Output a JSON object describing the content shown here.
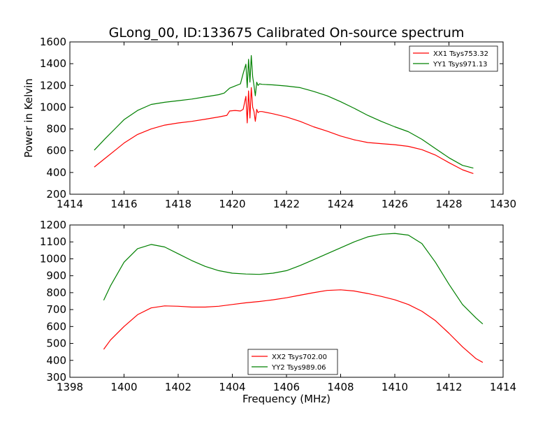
{
  "figure": {
    "title": "GLong_00, ID:133675 Calibrated On-source spectrum"
  },
  "chart_data": [
    {
      "type": "line",
      "title": "GLong_00, ID:133675 Calibrated On-source spectrum",
      "xlabel": "",
      "ylabel": "Power in Kelvin",
      "xlim": [
        1414,
        1430
      ],
      "ylim": [
        200,
        1600
      ],
      "xticks": [
        1414,
        1416,
        1418,
        1420,
        1422,
        1424,
        1426,
        1428,
        1430
      ],
      "yticks": [
        200,
        400,
        600,
        800,
        1000,
        1200,
        1400,
        1600
      ],
      "grid": false,
      "legend_position": "top-right",
      "series": [
        {
          "name": "XX1 Tsys753.32",
          "color": "#ff0000",
          "x": [
            1414.9,
            1415.3,
            1415.7,
            1416.0,
            1416.5,
            1417.0,
            1417.5,
            1418.0,
            1418.5,
            1419.0,
            1419.5,
            1419.8,
            1419.9,
            1420.1,
            1420.3,
            1420.4,
            1420.5,
            1420.55,
            1420.6,
            1420.65,
            1420.7,
            1420.75,
            1420.8,
            1420.85,
            1420.9,
            1420.95,
            1421.0,
            1421.1,
            1421.5,
            1422.0,
            1422.5,
            1423.0,
            1423.5,
            1424.0,
            1424.5,
            1425.0,
            1425.5,
            1426.0,
            1426.5,
            1427.0,
            1427.5,
            1428.0,
            1428.5,
            1428.9
          ],
          "y": [
            450,
            530,
            610,
            670,
            750,
            800,
            835,
            855,
            870,
            890,
            910,
            925,
            965,
            970,
            965,
            980,
            1100,
            855,
            1150,
            900,
            1180,
            1000,
            960,
            870,
            980,
            950,
            960,
            960,
            940,
            910,
            870,
            820,
            780,
            735,
            700,
            675,
            665,
            655,
            640,
            610,
            560,
            490,
            425,
            390
          ]
        },
        {
          "name": "YY1 Tsys971.13",
          "color": "#008000",
          "x": [
            1414.9,
            1415.3,
            1415.7,
            1416.0,
            1416.5,
            1417.0,
            1417.5,
            1418.0,
            1418.5,
            1419.0,
            1419.5,
            1419.7,
            1419.9,
            1420.1,
            1420.3,
            1420.4,
            1420.5,
            1420.55,
            1420.6,
            1420.65,
            1420.7,
            1420.75,
            1420.8,
            1420.85,
            1420.9,
            1420.95,
            1421.0,
            1421.1,
            1421.5,
            1422.0,
            1422.5,
            1423.0,
            1423.5,
            1424.0,
            1424.5,
            1425.0,
            1425.5,
            1426.0,
            1426.5,
            1427.0,
            1427.5,
            1428.0,
            1428.5,
            1428.9
          ],
          "y": [
            605,
            710,
            810,
            885,
            970,
            1025,
            1045,
            1060,
            1075,
            1095,
            1115,
            1130,
            1175,
            1195,
            1215,
            1310,
            1395,
            1180,
            1440,
            1230,
            1475,
            1280,
            1200,
            1105,
            1230,
            1200,
            1215,
            1210,
            1205,
            1195,
            1180,
            1145,
            1105,
            1050,
            990,
            925,
            870,
            820,
            775,
            705,
            620,
            535,
            465,
            440
          ]
        }
      ]
    },
    {
      "type": "line",
      "title": "",
      "xlabel": "Frequency (MHz)",
      "ylabel": "",
      "xlim": [
        1398,
        1414
      ],
      "ylim": [
        300,
        1200
      ],
      "xticks": [
        1398,
        1400,
        1402,
        1404,
        1406,
        1408,
        1410,
        1412,
        1414
      ],
      "yticks": [
        300,
        400,
        500,
        600,
        700,
        800,
        900,
        1000,
        1100,
        1200
      ],
      "grid": false,
      "legend_position": "bottom-center",
      "series": [
        {
          "name": "XX2 Tsys702.00",
          "color": "#ff0000",
          "x": [
            1399.25,
            1399.5,
            1400.0,
            1400.5,
            1401.0,
            1401.5,
            1402.0,
            1402.5,
            1403.0,
            1403.5,
            1404.0,
            1404.5,
            1405.0,
            1405.5,
            1406.0,
            1406.5,
            1407.0,
            1407.5,
            1408.0,
            1408.5,
            1409.0,
            1409.5,
            1410.0,
            1410.5,
            1411.0,
            1411.5,
            1412.0,
            1412.5,
            1413.0,
            1413.25
          ],
          "y": [
            465,
            520,
            600,
            670,
            710,
            722,
            720,
            715,
            715,
            720,
            730,
            740,
            748,
            758,
            770,
            785,
            800,
            813,
            817,
            810,
            795,
            778,
            758,
            730,
            690,
            635,
            560,
            480,
            410,
            388
          ]
        },
        {
          "name": "YY2 Tsys989.06",
          "color": "#008000",
          "x": [
            1399.25,
            1399.5,
            1400.0,
            1400.5,
            1401.0,
            1401.5,
            1402.0,
            1402.5,
            1403.0,
            1403.5,
            1404.0,
            1404.5,
            1405.0,
            1405.5,
            1406.0,
            1406.5,
            1407.0,
            1407.5,
            1408.0,
            1408.5,
            1409.0,
            1409.5,
            1410.0,
            1410.5,
            1411.0,
            1411.5,
            1412.0,
            1412.5,
            1413.0,
            1413.25
          ],
          "y": [
            755,
            840,
            980,
            1060,
            1085,
            1070,
            1030,
            990,
            955,
            930,
            915,
            910,
            908,
            915,
            930,
            960,
            995,
            1030,
            1065,
            1100,
            1130,
            1145,
            1150,
            1140,
            1090,
            980,
            850,
            730,
            650,
            615
          ]
        }
      ]
    }
  ]
}
